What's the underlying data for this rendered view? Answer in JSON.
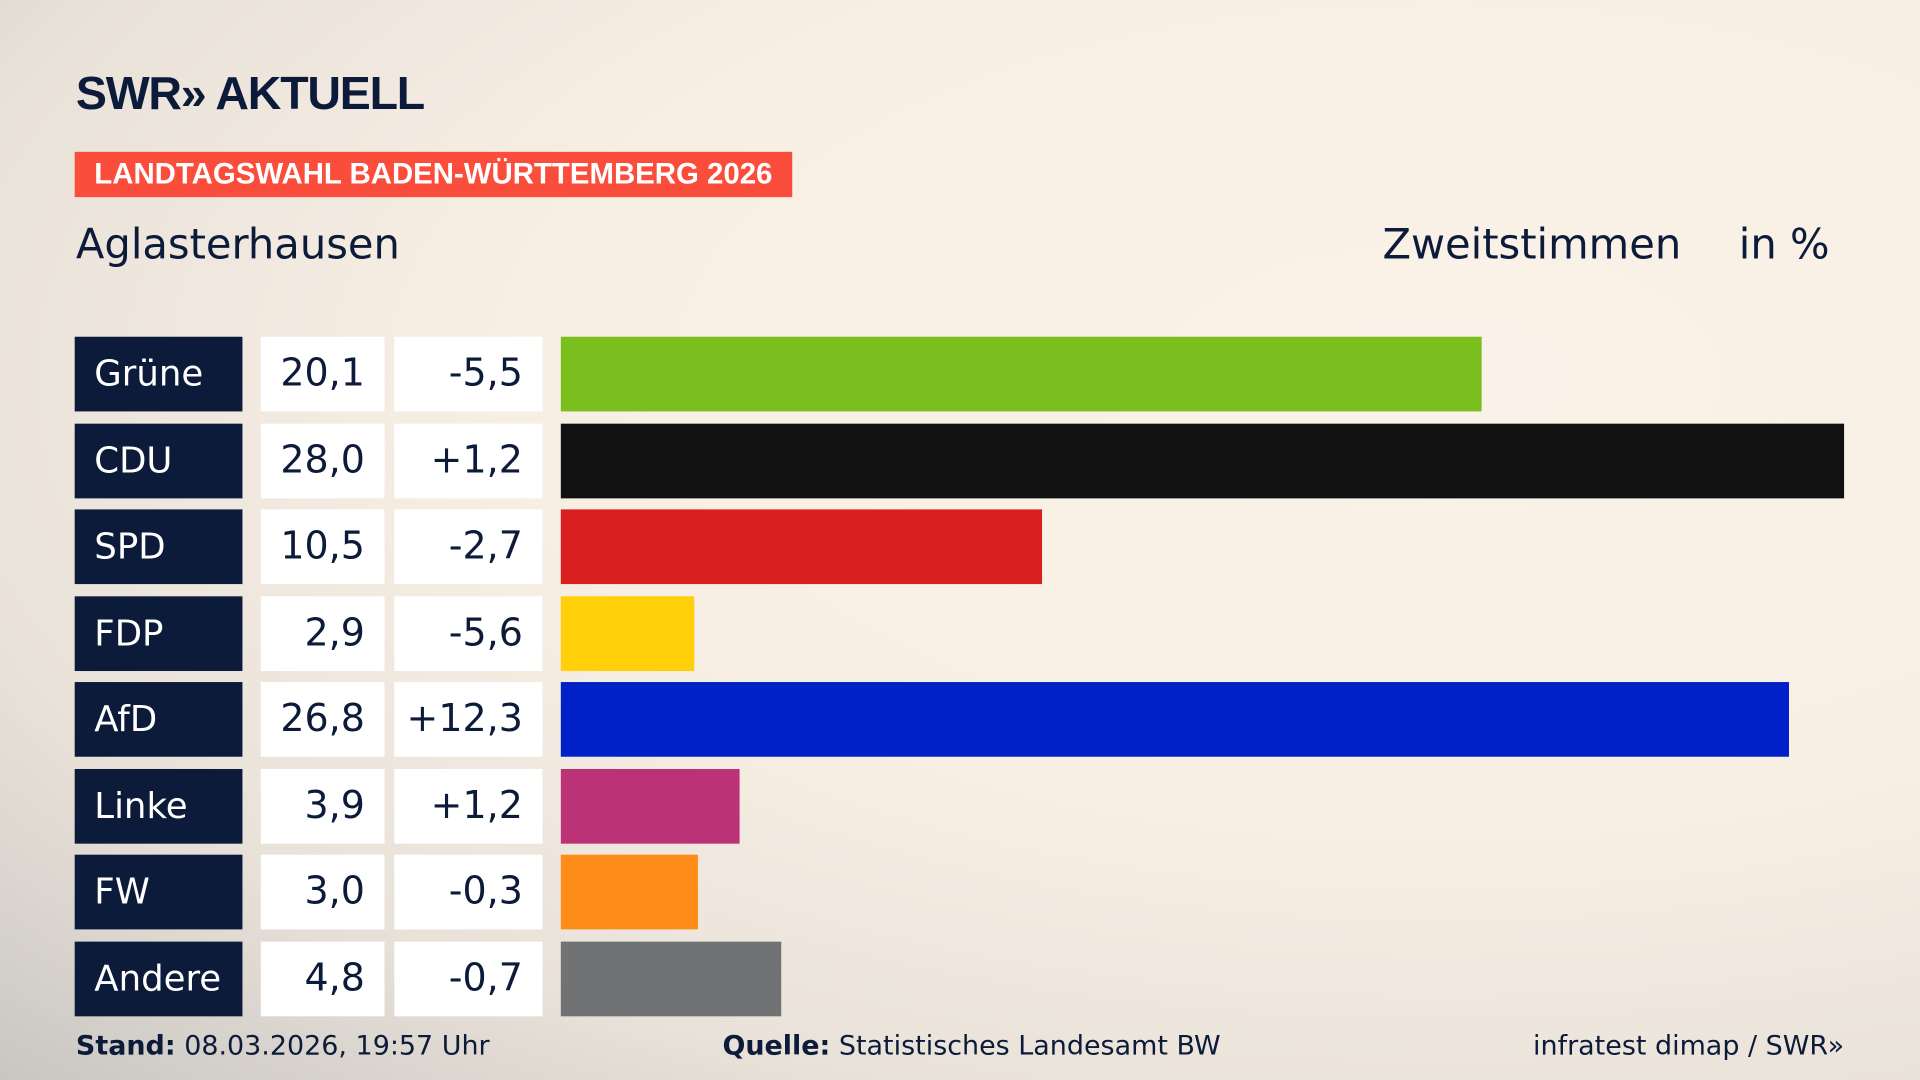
{
  "header": {
    "logo": "SWR» AKTUELL",
    "banner": "LANDTAGSWAHL BADEN-WÜRTTEMBERG 2026",
    "place": "Aglasterhausen",
    "vote_type": "Zweitstimmen",
    "unit": "in %"
  },
  "chart_data": {
    "type": "bar",
    "orientation": "horizontal",
    "xlim": [
      0,
      28
    ],
    "categories": [
      "Grüne",
      "CDU",
      "SPD",
      "FDP",
      "AfD",
      "Linke",
      "FW",
      "Andere"
    ],
    "values": [
      20.1,
      28.0,
      10.5,
      2.9,
      26.8,
      3.9,
      3.0,
      4.8
    ],
    "value_labels": [
      "20,1",
      "28,0",
      "10,5",
      "2,9",
      "26,8",
      "3,9",
      "3,0",
      "4,8"
    ],
    "change_labels": [
      "-5,5",
      "+1,2",
      "-2,7",
      "-5,6",
      "+12,3",
      "+1,2",
      "-0,3",
      "-0,7"
    ],
    "colors": [
      "#7abf1e",
      "#111111",
      "#d91f1f",
      "#ffcf0a",
      "#0021c8",
      "#bc3276",
      "#ff8c18",
      "#717274"
    ]
  },
  "footer": {
    "stand_label": "Stand:",
    "stand_value": "08.03.2026, 19:57 Uhr",
    "source_label": "Quelle:",
    "source_value": "Statistisches Landesamt BW",
    "credit": "infratest dimap / SWR»"
  }
}
